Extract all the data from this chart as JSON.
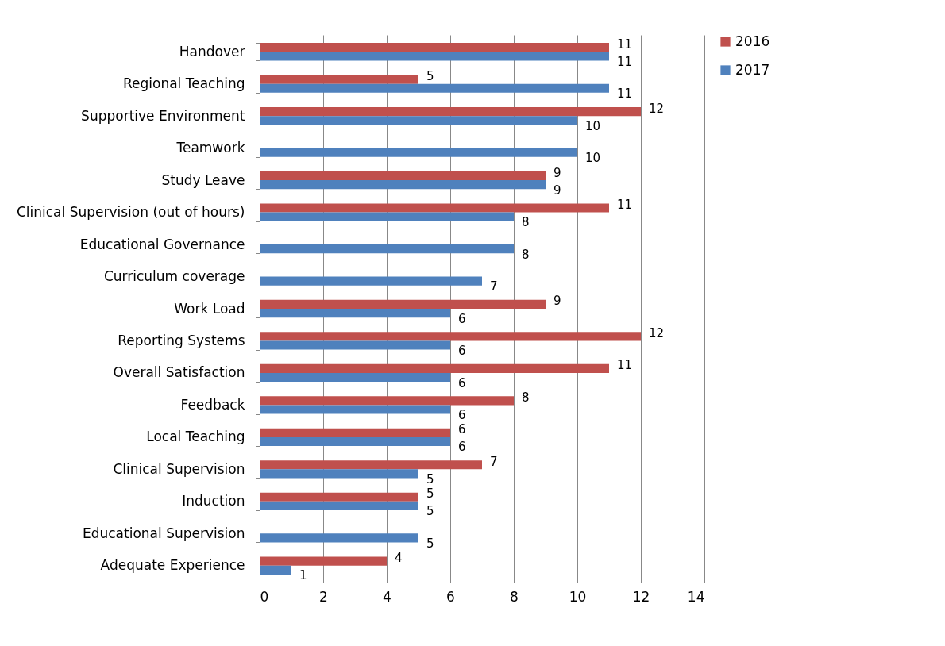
{
  "chart_data": {
    "type": "bar",
    "orientation": "horizontal",
    "categories": [
      "Handover",
      "Regional Teaching",
      "Supportive Environment",
      "Teamwork",
      "Study Leave",
      "Clinical Supervision (out of hours)",
      "Educational Governance",
      "Curriculum coverage",
      "Work Load",
      "Reporting Systems",
      "Overall Satisfaction",
      "Feedback",
      "Local Teaching",
      "Clinical Supervision",
      "Induction",
      "Educational Supervision",
      "Adequate Experience"
    ],
    "series": [
      {
        "name": "2016",
        "color": "#c0504d",
        "values": [
          11,
          5,
          12,
          null,
          9,
          11,
          null,
          null,
          9,
          12,
          11,
          8,
          6,
          7,
          5,
          null,
          4
        ]
      },
      {
        "name": "2017",
        "color": "#4f81bd",
        "values": [
          11,
          11,
          10,
          10,
          9,
          8,
          8,
          7,
          6,
          6,
          6,
          6,
          6,
          5,
          5,
          5,
          1
        ]
      }
    ],
    "xlim": [
      0,
      14
    ],
    "xticks": [
      0,
      2,
      4,
      6,
      8,
      10,
      12,
      14
    ],
    "grid": "x",
    "legend": "right",
    "data_labels": true
  }
}
